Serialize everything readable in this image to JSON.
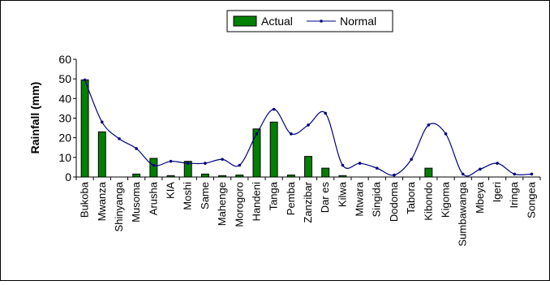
{
  "chart_data": {
    "type": "bar",
    "ylabel": "Rainfall (mm)",
    "ylim": [
      0,
      60
    ],
    "yticks": [
      0,
      10,
      20,
      30,
      40,
      50,
      60
    ],
    "grid": false,
    "legend_position": "top-center",
    "categories": [
      "Bukoba",
      "Mwanza",
      "Shinyanga",
      "Musoma",
      "Arusha",
      "KIA",
      "Moshi",
      "Same",
      "Mahenge",
      "Morogoro",
      "Handeni",
      "Tanga",
      "Pemba",
      "Zanzibar",
      "Dar es",
      "Kilwa",
      "Mtwara",
      "Singida",
      "Dodoma",
      "Tabora",
      "Kibondo",
      "Kigoma",
      "Sumbawanga",
      "Mbeya",
      "Igeri",
      "Iringa",
      "Songea"
    ],
    "series": [
      {
        "name": "Actual",
        "type": "bar",
        "color": "#008000",
        "values": [
          49.5,
          23,
          0,
          1.5,
          9.5,
          0.7,
          8,
          1.5,
          0.7,
          1,
          24.5,
          28,
          1,
          10.5,
          4.5,
          0.7,
          0,
          0,
          0,
          0,
          4.5,
          0,
          0,
          0,
          0,
          0,
          0
        ]
      },
      {
        "name": "Normal",
        "type": "line",
        "color": "#000080",
        "values": [
          49.5,
          28,
          19.5,
          14.5,
          6,
          8,
          7,
          7,
          9,
          6,
          22,
          34.5,
          22,
          26.5,
          32.5,
          6,
          7,
          4.5,
          1,
          9,
          26.5,
          22,
          1.5,
          4,
          7,
          1.5,
          1.5
        ]
      }
    ]
  }
}
